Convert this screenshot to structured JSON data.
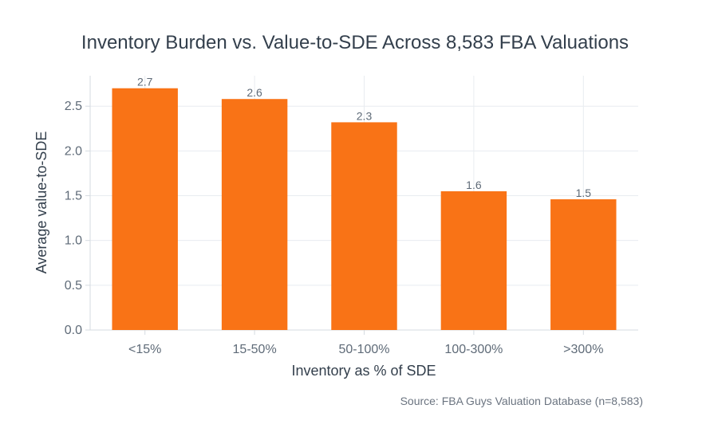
{
  "chart_data": {
    "type": "bar",
    "title": "Inventory Burden vs. Value-to-SDE Across 8,583 FBA Valuations",
    "xlabel": "Inventory as % of SDE",
    "ylabel": "Average value-to-SDE",
    "categories": [
      "<15%",
      "15-50%",
      "50-100%",
      "100-300%",
      ">300%"
    ],
    "values": [
      2.7,
      2.58,
      2.32,
      1.55,
      1.46
    ],
    "data_labels": [
      "2.7",
      "2.6",
      "2.3",
      "1.6",
      "1.5"
    ],
    "yticks": [
      "0.0",
      "0.5",
      "1.0",
      "1.5",
      "2.0",
      "2.5"
    ],
    "ylim": [
      0,
      2.84
    ],
    "grid": true,
    "bar_color": "#f97316",
    "grid_color": "#e8ecf0",
    "source": "Source: FBA Guys Valuation Database (n=8,583)"
  }
}
